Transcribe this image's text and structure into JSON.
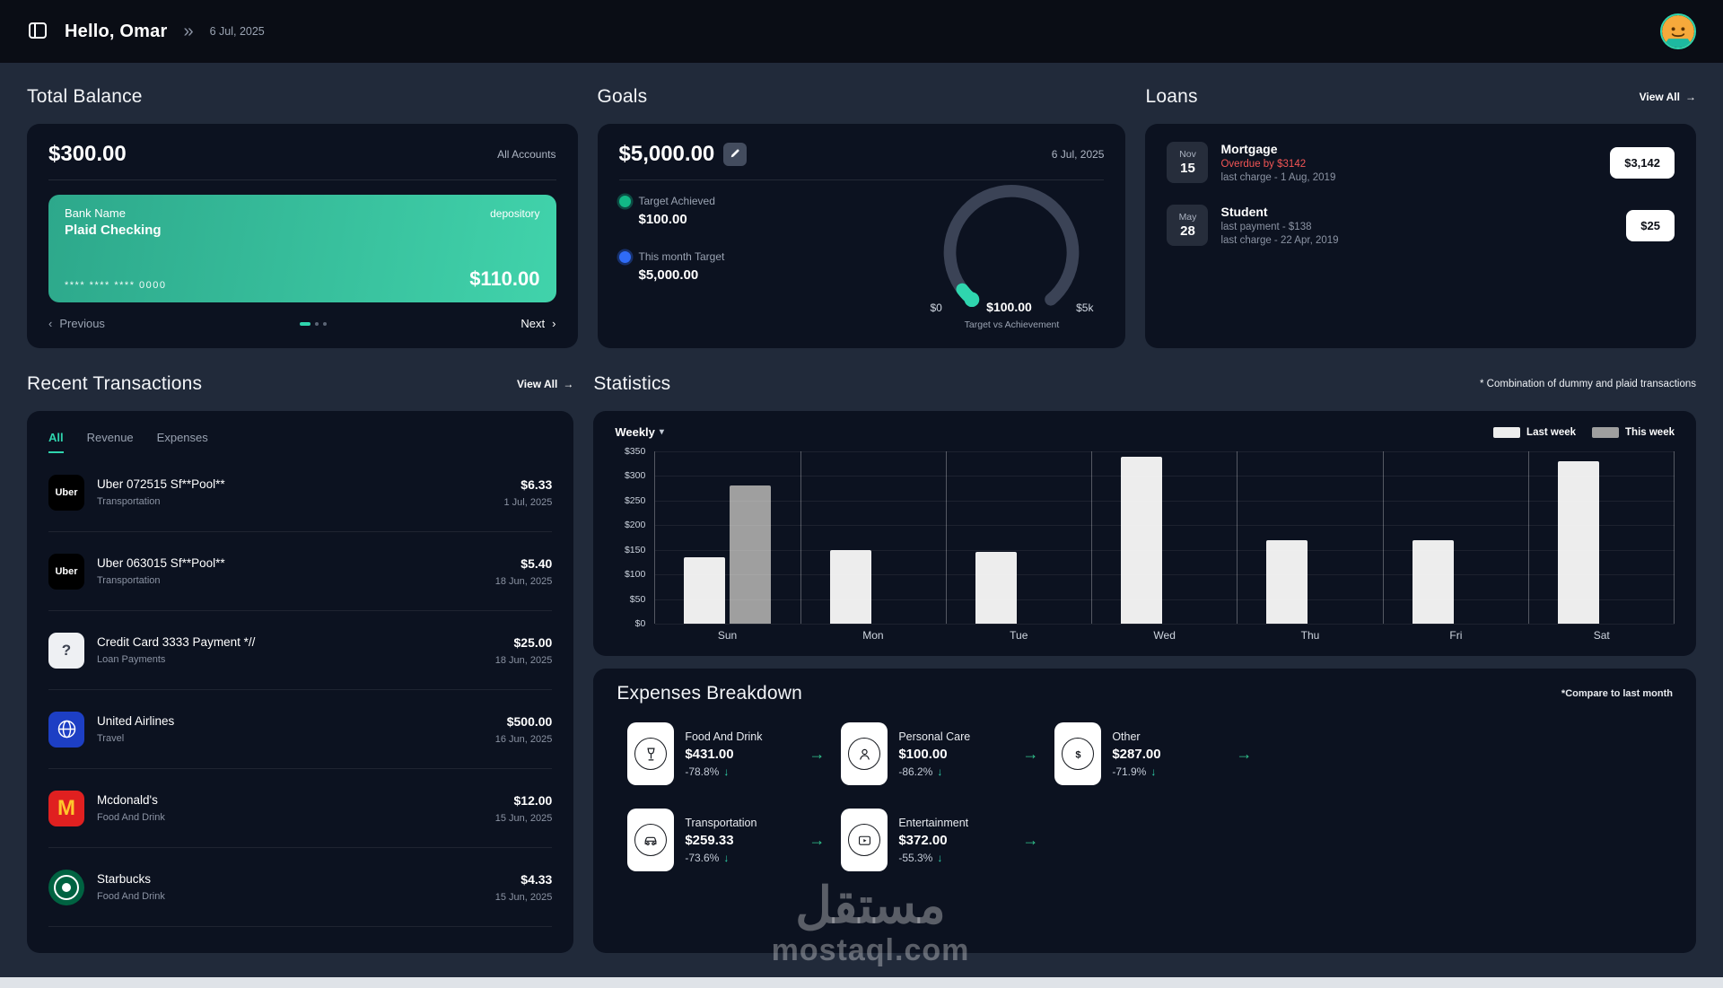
{
  "icons": {
    "arrow_right": "→",
    "arrow_down": "↓",
    "chevron_left": "‹",
    "chevron_right": "›",
    "chevron_down": "▾",
    "double_chevron": "»"
  },
  "colors": {
    "accent_teal": "#2fd5ae",
    "positive_green": "#31c48d",
    "overdue_red": "#f25555",
    "bank_card_teal": "#3ac2a0",
    "last_week_bar": "#ededed",
    "this_week_bar": "#9f9f9f"
  },
  "header": {
    "greeting": "Hello, Omar",
    "date": "6 Jul, 2025"
  },
  "total_balance": {
    "title": "Total Balance",
    "amount": "$300.00",
    "scope": "All Accounts",
    "bank_card": {
      "bank_name": "Bank Name",
      "account_type": "depository",
      "account_name": "Plaid Checking",
      "account_mask": "**** **** **** 0000",
      "balance": "$110.00"
    },
    "pagination": {
      "previous_label": "Previous",
      "next_label": "Next",
      "pages": 3,
      "active_page": 1
    }
  },
  "goals": {
    "title": "Goals",
    "target_amount": "$5,000.00",
    "date": "6 Jul, 2025",
    "target_achieved": {
      "label": "Target Achieved",
      "value": "$100.00"
    },
    "month_target": {
      "label": "This month Target",
      "value": "$5,000.00"
    },
    "gauge": {
      "min_label": "$0",
      "current_label": "$100.00",
      "max_label": "$5k",
      "caption": "Target vs Achievement",
      "percent_achieved": 2
    }
  },
  "loans": {
    "title": "Loans",
    "view_all_label": "View All",
    "items": [
      {
        "month": "Nov",
        "day": "15",
        "name": "Mortgage",
        "status": "Overdue by $3142",
        "last_charge": "last charge - 1 Aug, 2019",
        "amount": "$3,142"
      },
      {
        "month": "May",
        "day": "28",
        "name": "Student",
        "last_payment": "last payment - $138",
        "last_charge": "last charge - 22 Apr, 2019",
        "amount": "$25"
      }
    ]
  },
  "transactions": {
    "title": "Recent Transactions",
    "view_all_label": "View All",
    "tabs": [
      "All",
      "Revenue",
      "Expenses"
    ],
    "active_tab": "All",
    "items": [
      {
        "icon": "uber",
        "name": "Uber 072515 Sf**Pool**",
        "category": "Transportation",
        "amount": "$6.33",
        "date": "1 Jul, 2025"
      },
      {
        "icon": "uber",
        "name": "Uber 063015 Sf**Pool**",
        "category": "Transportation",
        "amount": "$5.40",
        "date": "18 Jun, 2025"
      },
      {
        "icon": "unknown",
        "name": "Credit Card 3333 Payment *//",
        "category": "Loan Payments",
        "amount": "$25.00",
        "date": "18 Jun, 2025"
      },
      {
        "icon": "united-airlines",
        "name": "United Airlines",
        "category": "Travel",
        "amount": "$500.00",
        "date": "16 Jun, 2025"
      },
      {
        "icon": "mcdonalds",
        "name": "Mcdonald's",
        "category": "Food And Drink",
        "amount": "$12.00",
        "date": "15 Jun, 2025"
      },
      {
        "icon": "starbucks",
        "name": "Starbucks",
        "category": "Food And Drink",
        "amount": "$4.33",
        "date": "15 Jun, 2025"
      }
    ]
  },
  "statistics": {
    "title": "Statistics",
    "note": "* Combination of dummy and plaid transactions",
    "period_selector": "Weekly",
    "chart_data": {
      "type": "bar",
      "categories": [
        "Sun",
        "Mon",
        "Tue",
        "Wed",
        "Thu",
        "Fri",
        "Sat"
      ],
      "series": [
        {
          "name": "Last week",
          "color": "#ededed",
          "values": [
            135,
            150,
            145,
            340,
            170,
            170,
            330
          ]
        },
        {
          "name": "This week",
          "color": "#9f9f9f",
          "values": [
            280,
            0,
            0,
            0,
            0,
            0,
            0
          ]
        }
      ],
      "ylabel_prefix": "$",
      "ylim": [
        0,
        350
      ],
      "ytick": 50,
      "grid": true,
      "legend_position": "top-right"
    }
  },
  "expenses": {
    "title": "Expenses Breakdown",
    "note": "*Compare to last month",
    "items": [
      {
        "icon": "food-and-drink",
        "name": "Food And Drink",
        "amount": "$431.00",
        "change": "-78.8%",
        "direction": "down"
      },
      {
        "icon": "personal-care",
        "name": "Personal Care",
        "amount": "$100.00",
        "change": "-86.2%",
        "direction": "down"
      },
      {
        "icon": "other",
        "name": "Other",
        "amount": "$287.00",
        "change": "-71.9%",
        "direction": "down"
      },
      {
        "icon": "transportation",
        "name": "Transportation",
        "amount": "$259.33",
        "change": "-73.6%",
        "direction": "down"
      },
      {
        "icon": "entertainment",
        "name": "Entertainment",
        "amount": "$372.00",
        "change": "-55.3%",
        "direction": "down"
      }
    ]
  },
  "watermark": {
    "arabic": "مستقل",
    "latin": "mostaql.com"
  }
}
